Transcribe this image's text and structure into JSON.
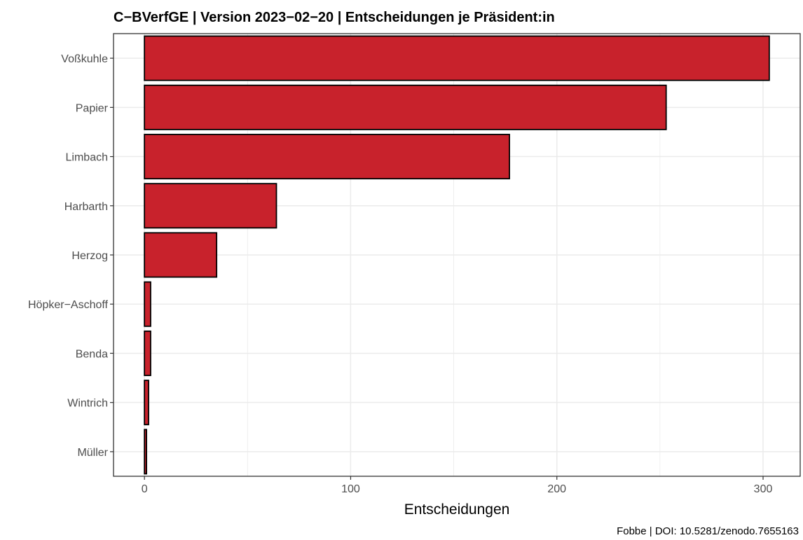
{
  "chart_data": {
    "type": "bar",
    "orientation": "horizontal",
    "title": "C−BVerfGE | Version 2023−02−20 | Entscheidungen je Präsident:in",
    "xlabel": "Entscheidungen",
    "ylabel": "",
    "caption": "Fobbe | DOI: 10.5281/zenodo.7655163",
    "categories": [
      "Voßkuhle",
      "Papier",
      "Limbach",
      "Harbarth",
      "Herzog",
      "Höpker−Aschoff",
      "Benda",
      "Wintrich",
      "Müller"
    ],
    "values": [
      303,
      253,
      177,
      64,
      35,
      3,
      3,
      2,
      1
    ],
    "xlim": [
      -15,
      318
    ],
    "xticks": [
      0,
      100,
      200,
      300
    ],
    "xtick_labels": [
      "0",
      "100",
      "200",
      "300"
    ],
    "grid": true,
    "legend": "none",
    "bar_color": "#c8222c",
    "bar_outline": "#000000",
    "grid_color": "#ebebeb"
  }
}
